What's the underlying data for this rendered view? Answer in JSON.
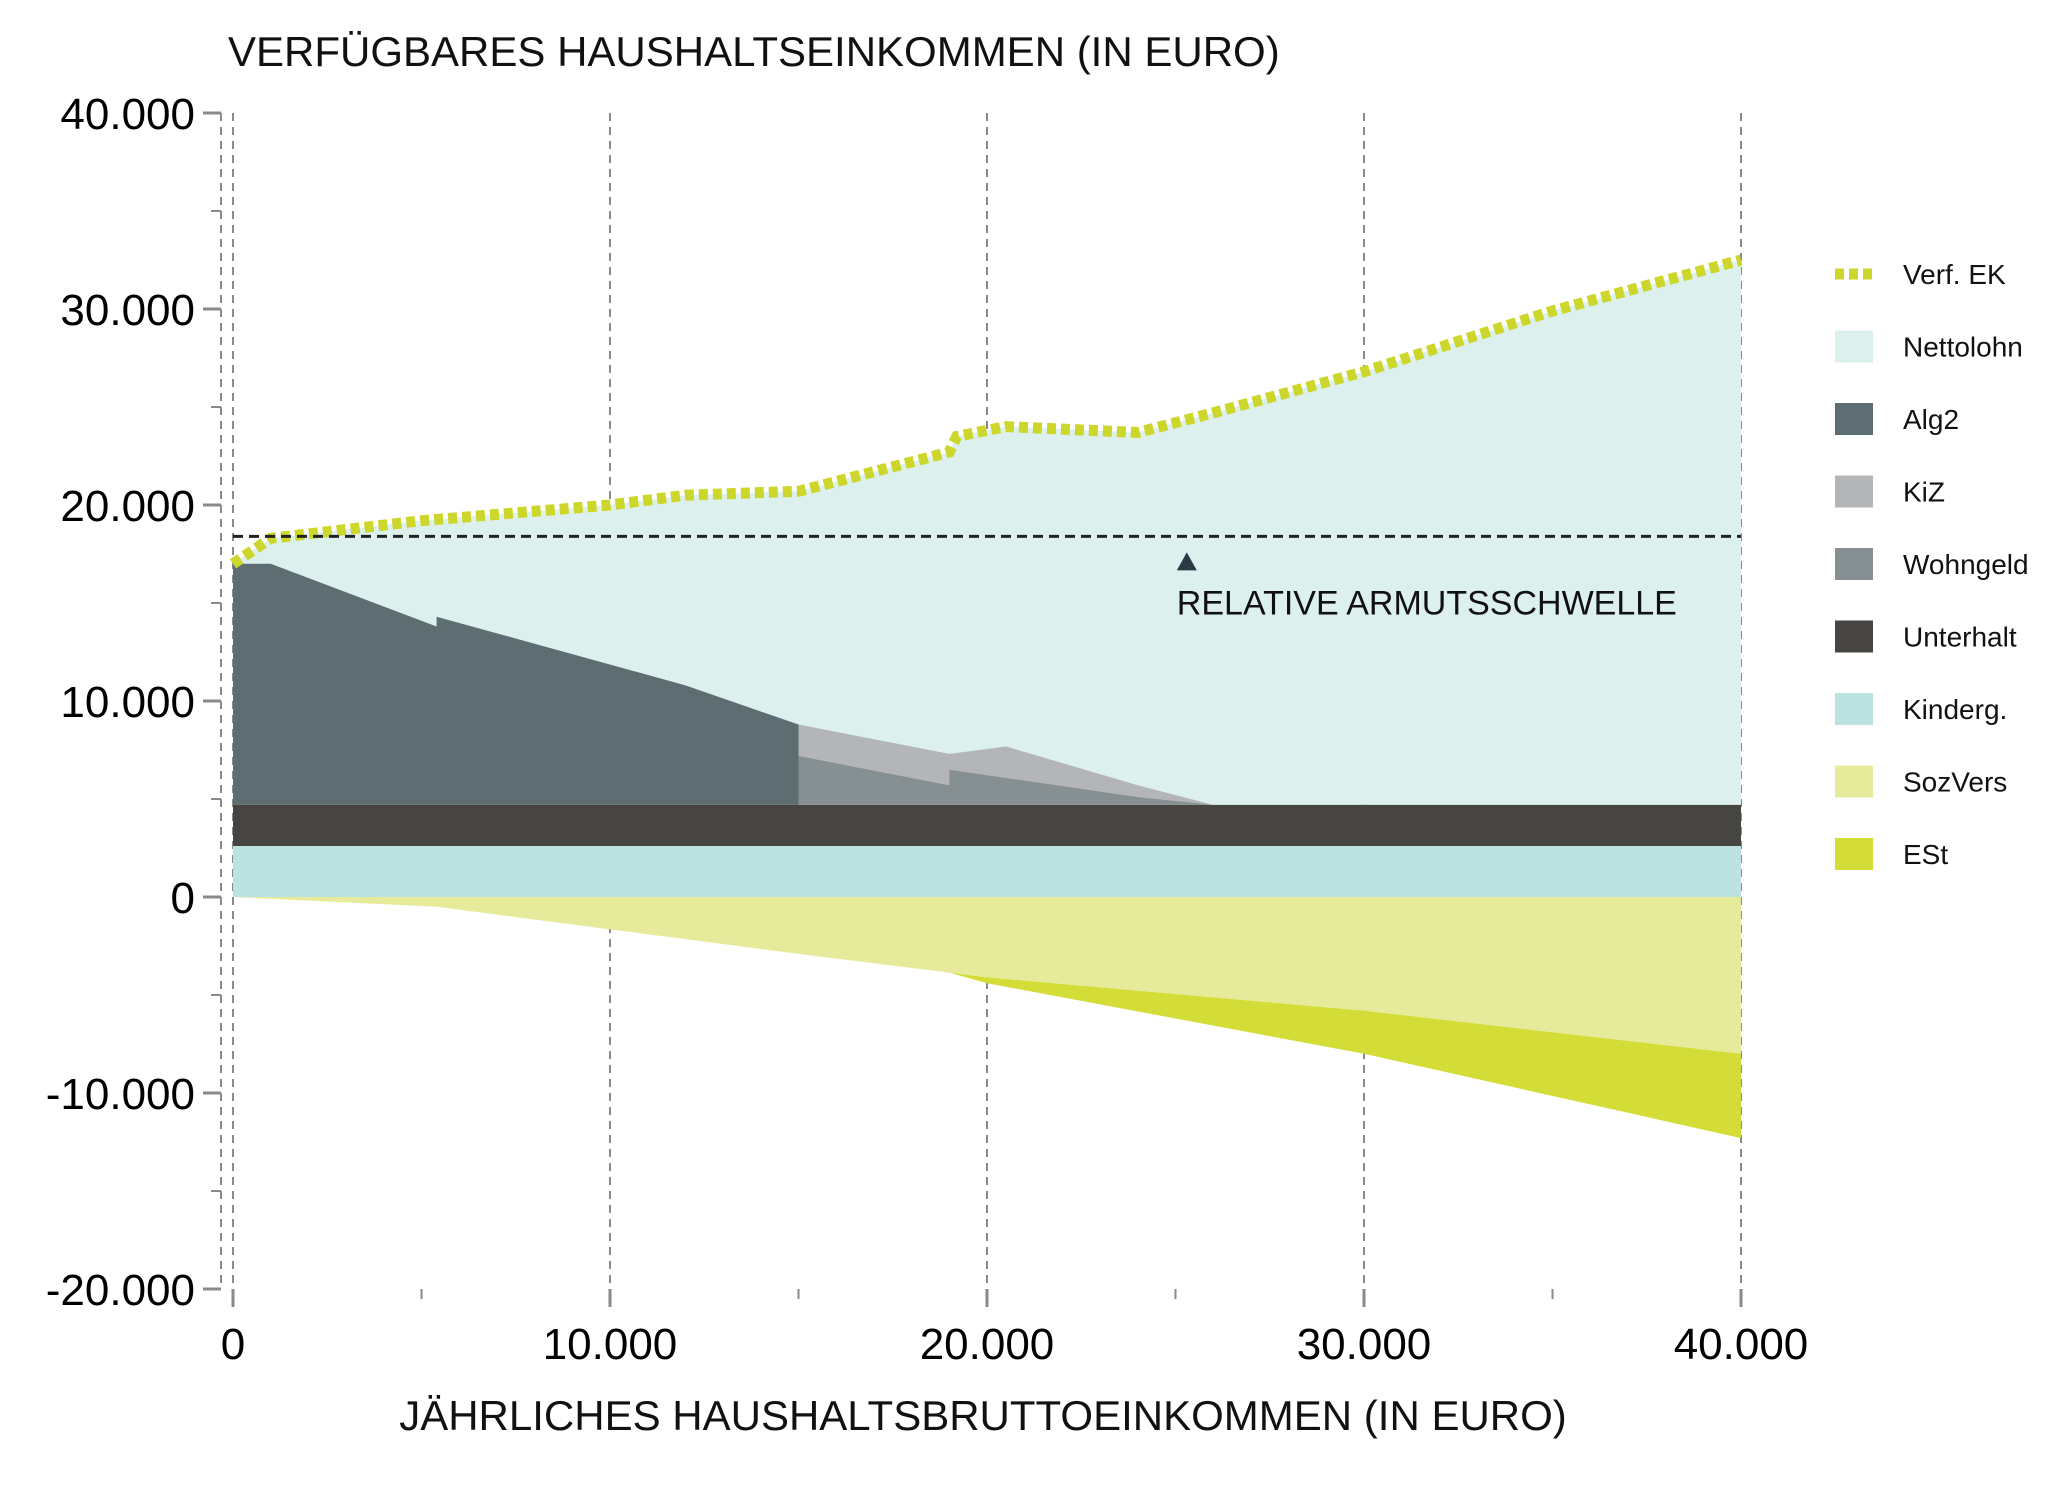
{
  "chart_data": {
    "type": "area",
    "title": "VERFÜGBARES HAUSHALTSEINKOMMEN (IN EURO)",
    "xlabel": "JÄHRLICHES HAUSHALTSBRUTTOEINKOMMEN (IN EURO)",
    "ylabel": "",
    "xlim": [
      0,
      40000
    ],
    "ylim": [
      -20000,
      40000
    ],
    "x_ticks": [
      0,
      10000,
      20000,
      30000,
      40000
    ],
    "x_tick_labels": [
      "0",
      "10.000",
      "20.000",
      "30.000",
      "40.000"
    ],
    "y_ticks": [
      40000,
      30000,
      20000,
      10000,
      0,
      -10000,
      -20000
    ],
    "y_tick_labels": [
      "40.000",
      "30.000",
      "20.000",
      "10.000",
      "0",
      "-10.000",
      "-20.000"
    ],
    "grid": "vertical dashed at x ticks",
    "legend_position": "right",
    "series": [
      {
        "name": "Verf. EK",
        "kind": "dotted-line",
        "color": "#cdd62a",
        "points": [
          [
            0,
            17000
          ],
          [
            1000,
            18300
          ],
          [
            5000,
            19200
          ],
          [
            10000,
            20000
          ],
          [
            12000,
            20500
          ],
          [
            15000,
            20700
          ],
          [
            19000,
            22700
          ],
          [
            19200,
            23500
          ],
          [
            20500,
            24000
          ],
          [
            24000,
            23700
          ],
          [
            26000,
            24700
          ],
          [
            30000,
            26800
          ],
          [
            35000,
            29900
          ],
          [
            40000,
            32500
          ]
        ]
      },
      {
        "name": "Nettolohn",
        "kind": "stacked-area",
        "color": "#dcf0ee",
        "points": [
          [
            0,
            0
          ],
          [
            40000,
            27700
          ]
        ]
      },
      {
        "name": "Alg2",
        "kind": "stacked-area",
        "color": "#5d6d72",
        "points": [
          [
            0,
            12300
          ],
          [
            1000,
            12300
          ],
          [
            5400,
            9100
          ],
          [
            5400,
            9600
          ],
          [
            12000,
            6100
          ],
          [
            15000,
            4100
          ],
          [
            15000,
            0
          ]
        ]
      },
      {
        "name": "KiZ",
        "kind": "stacked-area",
        "color": "#b4b5b6",
        "points": [
          [
            15000,
            1600
          ],
          [
            19000,
            1600
          ],
          [
            19000,
            1600
          ],
          [
            20500,
            1600
          ],
          [
            24000,
            600
          ],
          [
            26000,
            0
          ]
        ]
      },
      {
        "name": "Wohngeld",
        "kind": "stacked-area",
        "color": "#869093",
        "points": [
          [
            15000,
            2500
          ],
          [
            19000,
            1000
          ],
          [
            19000,
            1800
          ],
          [
            24000,
            400
          ],
          [
            26000,
            0
          ]
        ]
      },
      {
        "name": "Unterhalt",
        "kind": "stacked-area",
        "color": "#464542",
        "points": [
          [
            0,
            2100
          ],
          [
            40000,
            2100
          ]
        ]
      },
      {
        "name": "Kinderg.",
        "kind": "stacked-area",
        "color": "#bde2e2",
        "points": [
          [
            0,
            2600
          ],
          [
            40000,
            2600
          ]
        ]
      },
      {
        "name": "SozVers",
        "kind": "negative-area",
        "color": "#e6eb9c",
        "points": [
          [
            0,
            0
          ],
          [
            5400,
            -500
          ],
          [
            15000,
            -2900
          ],
          [
            20000,
            -4100
          ],
          [
            30000,
            -5800
          ],
          [
            40000,
            -8000
          ]
        ]
      },
      {
        "name": "ESt",
        "kind": "negative-area",
        "color": "#d4dd38",
        "points": [
          [
            19000,
            0
          ],
          [
            20000,
            -300
          ],
          [
            30000,
            -2200
          ],
          [
            40000,
            -4300
          ]
        ]
      }
    ],
    "annotations": [
      {
        "text": "RELATIVE ARMUTSSCHWELLE",
        "y": 18400,
        "x": 25300,
        "style": "dashed horizontal line"
      }
    ]
  }
}
